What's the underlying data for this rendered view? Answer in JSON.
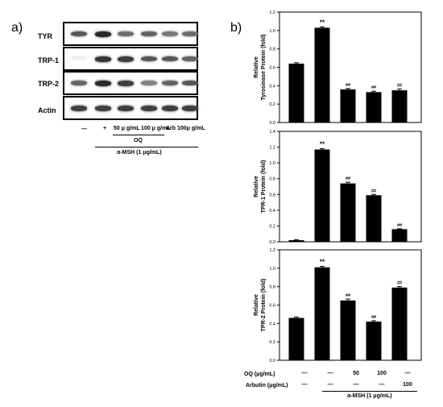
{
  "panel_a": {
    "label": "a)",
    "blots": [
      {
        "name": "TYR",
        "intensities": [
          0.75,
          0.95,
          0.65,
          0.7,
          0.6,
          0.65
        ]
      },
      {
        "name": "TRP-1",
        "intensities": [
          0.08,
          0.9,
          0.85,
          0.75,
          0.75,
          0.7
        ]
      },
      {
        "name": "TRP-2",
        "intensities": [
          0.7,
          0.95,
          0.85,
          0.55,
          0.7,
          0.75
        ]
      },
      {
        "name": "Actin",
        "intensities": [
          0.85,
          0.85,
          0.85,
          0.85,
          0.85,
          0.85
        ]
      }
    ],
    "lanes": [
      "—",
      "+",
      "50 μ g/mL",
      "100 μ g/mL",
      "Arb",
      "100μ g/mL"
    ],
    "oq_label": "OQ",
    "msh_label": "α-MSH (1 μg/mL)"
  },
  "panel_b": {
    "label": "b)",
    "row_labels": {
      "oq": "OQ (μg/mL)",
      "arbutin": "Arbutin (μg/mL)",
      "msh": "α-MSH (1 μg/mL)"
    },
    "oq_values": [
      "—",
      "—",
      "50",
      "100",
      "—"
    ],
    "arbutin_values": [
      "—",
      "—",
      "—",
      "—",
      "100"
    ]
  },
  "chart_data": [
    {
      "type": "bar",
      "ylabel": "Relative Tyrosinase Protein (fold)",
      "ylim": [
        0,
        1.2
      ],
      "yticks": [
        "0.0",
        "0.2",
        "0.4",
        "0.6",
        "0.8",
        "1.0",
        "1.2"
      ],
      "values": [
        0.64,
        1.03,
        0.36,
        0.33,
        0.35
      ],
      "errors": [
        0.01,
        0.01,
        0.01,
        0.01,
        0.015
      ],
      "annotations": [
        "",
        "**",
        "##",
        "##",
        "##"
      ]
    },
    {
      "type": "bar",
      "ylabel": "Relative TPR-1 Protein (fold)",
      "ylim": [
        0,
        1.4
      ],
      "yticks": [
        "0.0",
        "0.2",
        "0.4",
        "0.6",
        "0.8",
        "1.0",
        "1.2",
        "1.4"
      ],
      "values": [
        0.02,
        1.17,
        0.74,
        0.59,
        0.16
      ],
      "errors": [
        0.005,
        0.01,
        0.015,
        0.01,
        0.005
      ],
      "annotations": [
        "",
        "**",
        "##",
        "##",
        "##"
      ]
    },
    {
      "type": "bar",
      "ylabel": "Relative TPR-2 Protein (fold)",
      "ylim": [
        0,
        1.2
      ],
      "yticks": [
        "0.0",
        "0.2",
        "0.4",
        "0.6",
        "0.8",
        "1.0",
        "1.2"
      ],
      "values": [
        0.46,
        1.01,
        0.65,
        0.42,
        0.79
      ],
      "errors": [
        0.01,
        0.01,
        0.015,
        0.01,
        0.01
      ],
      "annotations": [
        "",
        "**",
        "##",
        "##",
        "##"
      ]
    }
  ]
}
